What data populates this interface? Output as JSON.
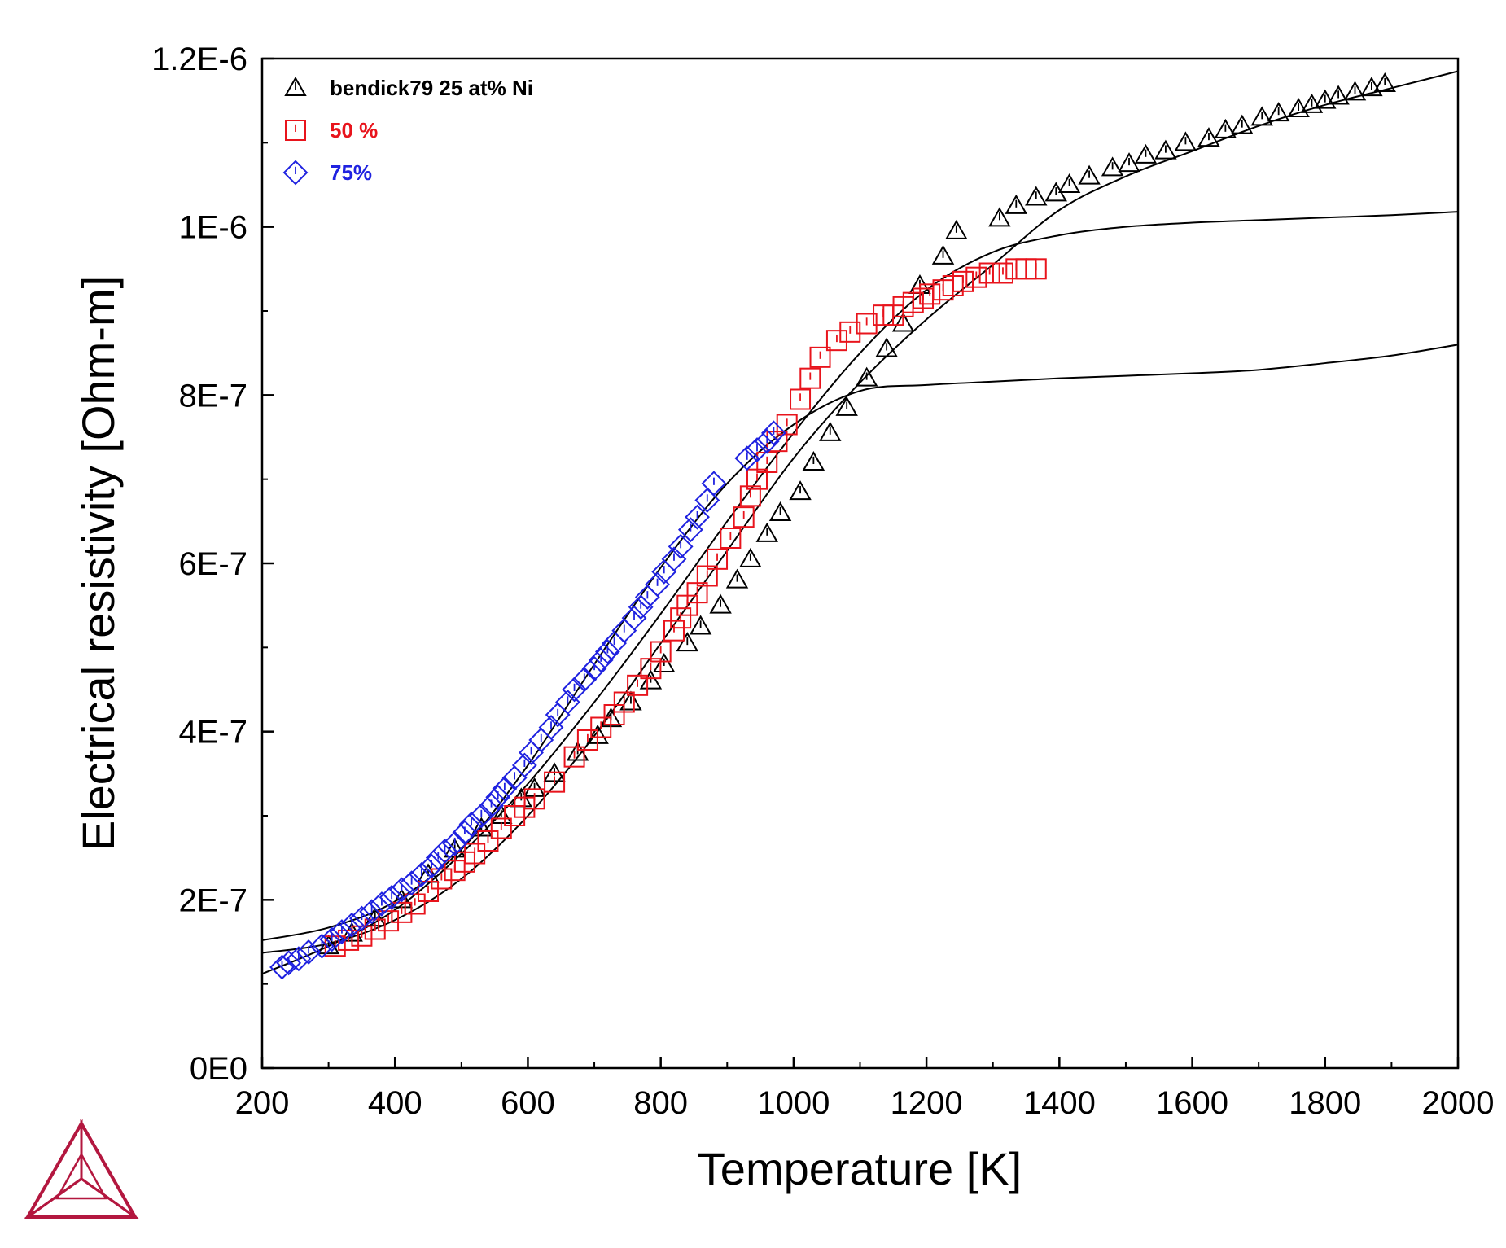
{
  "chart_data": {
    "type": "scatter",
    "title": "",
    "xlabel": "Temperature [K]",
    "ylabel": "Electrical resistivity [Ohm-m]",
    "xlim": [
      200,
      2000
    ],
    "ylim": [
      0,
      1.2e-06
    ],
    "x_ticks": [
      200,
      400,
      600,
      800,
      1000,
      1200,
      1400,
      1600,
      1800,
      2000
    ],
    "x_tick_labels": [
      "200",
      "400",
      "600",
      "800",
      "1000",
      "1200",
      "1400",
      "1600",
      "1800",
      "2000"
    ],
    "y_ticks": [
      0,
      2e-07,
      4e-07,
      6e-07,
      8e-07,
      1e-06,
      1.2e-06
    ],
    "y_tick_labels": [
      "0E0",
      "2E-7",
      "4E-7",
      "6E-7",
      "8E-7",
      "1E-6",
      "1.2E-6"
    ],
    "grid": false,
    "legend_position": "top-left",
    "series": [
      {
        "name": "bendick79 25 at% Ni",
        "marker": "triangle",
        "color": "#000000",
        "x": [
          300,
          335,
          370,
          410,
          450,
          490,
          530,
          560,
          590,
          610,
          640,
          675,
          705,
          725,
          755,
          785,
          805,
          840,
          860,
          890,
          915,
          935,
          960,
          980,
          1010,
          1030,
          1055,
          1080,
          1110,
          1140,
          1165,
          1190,
          1225,
          1245,
          1310,
          1335,
          1365,
          1395,
          1415,
          1445,
          1480,
          1505,
          1530,
          1560,
          1590,
          1625,
          1650,
          1675,
          1705,
          1730,
          1760,
          1780,
          1800,
          1820,
          1845,
          1870,
          1890
        ],
        "y": [
          1.45e-07,
          1.6e-07,
          1.78e-07,
          2e-07,
          2.3e-07,
          2.6e-07,
          2.85e-07,
          3e-07,
          3.2e-07,
          3.32e-07,
          3.5e-07,
          3.75e-07,
          3.95e-07,
          4.15e-07,
          4.35e-07,
          4.6e-07,
          4.8e-07,
          5.05e-07,
          5.25e-07,
          5.5e-07,
          5.8e-07,
          6.05e-07,
          6.35e-07,
          6.6e-07,
          6.85e-07,
          7.2e-07,
          7.55e-07,
          7.85e-07,
          8.2e-07,
          8.55e-07,
          8.85e-07,
          9.3e-07,
          9.65e-07,
          9.95e-07,
          1.01e-06,
          1.025e-06,
          1.035e-06,
          1.04e-06,
          1.05e-06,
          1.06e-06,
          1.07e-06,
          1.075e-06,
          1.085e-06,
          1.09e-06,
          1.1e-06,
          1.105e-06,
          1.115e-06,
          1.12e-06,
          1.13e-06,
          1.135e-06,
          1.14e-06,
          1.145e-06,
          1.15e-06,
          1.155e-06,
          1.16e-06,
          1.165e-06,
          1.17e-06
        ]
      },
      {
        "name": "50 %",
        "marker": "square",
        "color": "#e8141c",
        "x": [
          310,
          330,
          350,
          370,
          390,
          410,
          430,
          450,
          470,
          490,
          505,
          520,
          540,
          560,
          580,
          595,
          610,
          640,
          670,
          690,
          710,
          730,
          745,
          765,
          785,
          800,
          820,
          830,
          840,
          855,
          870,
          885,
          905,
          925,
          935,
          945,
          960,
          975,
          990,
          1010,
          1025,
          1040,
          1065,
          1085,
          1110,
          1135,
          1150,
          1165,
          1180,
          1195,
          1205,
          1225,
          1240,
          1255,
          1275,
          1295,
          1315,
          1335,
          1350,
          1365
        ],
        "y": [
          1.45e-07,
          1.52e-07,
          1.57e-07,
          1.65e-07,
          1.75e-07,
          1.85e-07,
          1.95e-07,
          2.1e-07,
          2.25e-07,
          2.35e-07,
          2.45e-07,
          2.55e-07,
          2.7e-07,
          2.85e-07,
          3e-07,
          3.1e-07,
          3.2e-07,
          3.4e-07,
          3.7e-07,
          3.9e-07,
          4.05e-07,
          4.2e-07,
          4.35e-07,
          4.55e-07,
          4.75e-07,
          4.95e-07,
          5.2e-07,
          5.35e-07,
          5.5e-07,
          5.65e-07,
          5.85e-07,
          6.05e-07,
          6.3e-07,
          6.55e-07,
          6.8e-07,
          7e-07,
          7.2e-07,
          7.45e-07,
          7.65e-07,
          7.95e-07,
          8.2e-07,
          8.45e-07,
          8.65e-07,
          8.75e-07,
          8.85e-07,
          8.95e-07,
          8.95e-07,
          9.05e-07,
          9.1e-07,
          9.15e-07,
          9.2e-07,
          9.25e-07,
          9.3e-07,
          9.35e-07,
          9.4e-07,
          9.45e-07,
          9.45e-07,
          9.5e-07,
          9.5e-07,
          9.5e-07
        ]
      },
      {
        "name": "75%",
        "marker": "diamond",
        "color": "#1f22e0",
        "x": [
          230,
          240,
          255,
          270,
          290,
          305,
          320,
          335,
          350,
          365,
          380,
          395,
          410,
          425,
          440,
          455,
          465,
          475,
          490,
          505,
          515,
          530,
          545,
          555,
          565,
          580,
          595,
          605,
          620,
          635,
          645,
          660,
          670,
          685,
          700,
          710,
          720,
          730,
          745,
          760,
          770,
          780,
          795,
          805,
          820,
          830,
          845,
          855,
          870,
          880,
          930,
          945,
          960,
          970
        ],
        "y": [
          1.2e-07,
          1.25e-07,
          1.3e-07,
          1.38e-07,
          1.45e-07,
          1.53e-07,
          1.62e-07,
          1.7e-07,
          1.78e-07,
          1.86e-07,
          1.95e-07,
          2.03e-07,
          2.12e-07,
          2.2e-07,
          2.3e-07,
          2.4e-07,
          2.5e-07,
          2.58e-07,
          2.67e-07,
          2.8e-07,
          2.9e-07,
          3e-07,
          3.12e-07,
          3.22e-07,
          3.32e-07,
          3.45e-07,
          3.6e-07,
          3.75e-07,
          3.9e-07,
          4.05e-07,
          4.2e-07,
          4.35e-07,
          4.5e-07,
          4.62e-07,
          4.75e-07,
          4.85e-07,
          4.95e-07,
          5.05e-07,
          5.2e-07,
          5.35e-07,
          5.48e-07,
          5.6e-07,
          5.75e-07,
          5.9e-07,
          6.05e-07,
          6.2e-07,
          6.4e-07,
          6.55e-07,
          6.75e-07,
          6.95e-07,
          7.25e-07,
          7.35e-07,
          7.45e-07,
          7.55e-07
        ]
      }
    ],
    "curves": [
      {
        "x": [
          200,
          300,
          400,
          500,
          600,
          700,
          800,
          900,
          1000,
          1100,
          1200,
          1300,
          1400,
          1500,
          1600,
          1700,
          1800,
          1900,
          2000
        ],
        "y": [
          1.12e-07,
          1.45e-07,
          1.88e-07,
          2.55e-07,
          3.38e-07,
          4.35e-07,
          5.4e-07,
          6.5e-07,
          7.55e-07,
          8.5e-07,
          9.25e-07,
          9.7e-07,
          9.9e-07,
          1e-06,
          1.005e-06,
          1.008e-06,
          1.011e-06,
          1.014e-06,
          1.018e-06
        ]
      },
      {
        "x": [
          200,
          300,
          400,
          500,
          600,
          700,
          800,
          900,
          1000,
          1100,
          1200,
          1300,
          1400,
          1500,
          1600,
          1700,
          1800,
          1900,
          2000
        ],
        "y": [
          1.52e-07,
          1.67e-07,
          1.98e-07,
          2.6e-07,
          3.6e-07,
          4.8e-07,
          5.95e-07,
          6.95e-07,
          7.65e-07,
          8.05e-07,
          8.12e-07,
          8.16e-07,
          8.2e-07,
          8.23e-07,
          8.26e-07,
          8.3e-07,
          8.38e-07,
          8.47e-07,
          8.6e-07
        ]
      },
      {
        "x": [
          200,
          300,
          400,
          500,
          600,
          700,
          800,
          900,
          1000,
          1100,
          1200,
          1300,
          1400,
          1500,
          1600,
          1700,
          1800,
          1900,
          2000
        ],
        "y": [
          1.37e-07,
          1.48e-07,
          1.76e-07,
          2.25e-07,
          3e-07,
          3.95e-07,
          5.05e-07,
          6.15e-07,
          7.25e-07,
          8.15e-07,
          8.9e-07,
          9.55e-07,
          1.02e-06,
          1.06e-06,
          1.09e-06,
          1.12e-06,
          1.145e-06,
          1.165e-06,
          1.185e-06
        ]
      }
    ]
  },
  "logo": {
    "name": "thermo-calc-logo-icon",
    "color": "#b3173f"
  }
}
